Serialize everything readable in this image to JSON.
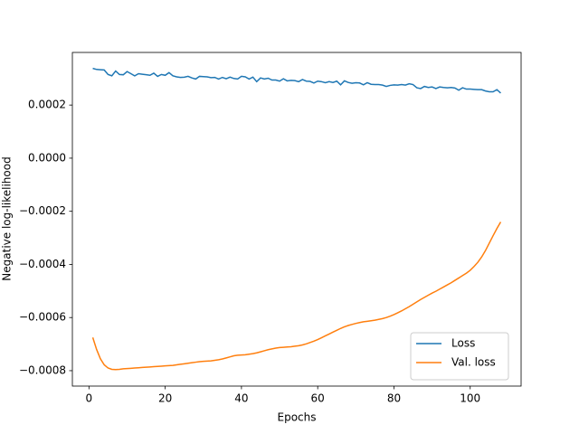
{
  "chart_data": {
    "type": "line",
    "xlabel": "Epochs",
    "ylabel": "Negative log-likelihood",
    "x": [
      1,
      2,
      3,
      4,
      5,
      6,
      7,
      8,
      9,
      10,
      11,
      12,
      13,
      14,
      15,
      16,
      17,
      18,
      19,
      20,
      21,
      22,
      23,
      24,
      25,
      26,
      27,
      28,
      29,
      30,
      31,
      32,
      33,
      34,
      35,
      36,
      37,
      38,
      39,
      40,
      41,
      42,
      43,
      44,
      45,
      46,
      47,
      48,
      49,
      50,
      51,
      52,
      53,
      54,
      55,
      56,
      57,
      58,
      59,
      60,
      61,
      62,
      63,
      64,
      65,
      66,
      67,
      68,
      69,
      70,
      71,
      72,
      73,
      74,
      75,
      76,
      77,
      78,
      79,
      80,
      81,
      82,
      83,
      84,
      85,
      86,
      87,
      88,
      89,
      90,
      91,
      92,
      93,
      94,
      95,
      96,
      97,
      98,
      99,
      100,
      101,
      102,
      103,
      104,
      105,
      106,
      107,
      108
    ],
    "series": [
      {
        "name": "Loss",
        "color": "#1f77b4",
        "values": [
          0.000338,
          0.000334,
          0.000333,
          0.000332,
          0.000315,
          0.00031,
          0.000328,
          0.000315,
          0.000314,
          0.000326,
          0.000318,
          0.00031,
          0.000318,
          0.000316,
          0.000314,
          0.000312,
          0.00032,
          0.000308,
          0.000315,
          0.000312,
          0.000322,
          0.00031,
          0.000306,
          0.000304,
          0.000305,
          0.000308,
          0.000302,
          0.000298,
          0.000308,
          0.000307,
          0.000306,
          0.000303,
          0.000304,
          0.000298,
          0.000304,
          0.000299,
          0.000305,
          0.0003,
          0.000298,
          0.000308,
          0.000306,
          0.000298,
          0.000305,
          0.000288,
          0.000302,
          0.000298,
          0.000301,
          0.000294,
          0.000294,
          0.00029,
          0.000299,
          0.000291,
          0.000293,
          0.000292,
          0.000288,
          0.000296,
          0.00029,
          0.000289,
          0.000283,
          0.00029,
          0.000288,
          0.000284,
          0.000288,
          0.000285,
          0.00029,
          0.000276,
          0.000291,
          0.000285,
          0.000282,
          0.000284,
          0.000283,
          0.000276,
          0.000284,
          0.000278,
          0.000277,
          0.000277,
          0.000275,
          0.00027,
          0.000274,
          0.000276,
          0.000275,
          0.000277,
          0.000275,
          0.00028,
          0.000277,
          0.000265,
          0.000262,
          0.00027,
          0.000266,
          0.000268,
          0.000262,
          0.000268,
          0.000266,
          0.000265,
          0.000266,
          0.000264,
          0.000256,
          0.000265,
          0.00026,
          0.00026,
          0.000259,
          0.000258,
          0.000258,
          0.000253,
          0.00025,
          0.00025,
          0.000258,
          0.000245
        ]
      },
      {
        "name": "Val. loss",
        "color": "#ff7f0e",
        "values": [
          -0.000675,
          -0.00072,
          -0.000755,
          -0.000778,
          -0.00079,
          -0.000795,
          -0.000796,
          -0.000795,
          -0.000793,
          -0.000792,
          -0.000791,
          -0.00079,
          -0.000789,
          -0.000788,
          -0.000787,
          -0.000786,
          -0.000785,
          -0.000784,
          -0.000783,
          -0.000782,
          -0.000781,
          -0.00078,
          -0.000778,
          -0.000776,
          -0.000774,
          -0.000772,
          -0.00077,
          -0.000768,
          -0.000766,
          -0.000765,
          -0.000764,
          -0.000763,
          -0.000761,
          -0.000759,
          -0.000756,
          -0.000752,
          -0.000748,
          -0.000744,
          -0.000742,
          -0.000741,
          -0.00074,
          -0.000738,
          -0.000736,
          -0.000733,
          -0.000729,
          -0.000725,
          -0.000721,
          -0.000718,
          -0.000715,
          -0.000713,
          -0.000712,
          -0.000711,
          -0.00071,
          -0.000708,
          -0.000706,
          -0.000703,
          -0.000699,
          -0.000694,
          -0.000689,
          -0.000683,
          -0.000676,
          -0.000669,
          -0.000662,
          -0.000655,
          -0.000648,
          -0.000641,
          -0.000635,
          -0.00063,
          -0.000626,
          -0.000622,
          -0.000619,
          -0.000616,
          -0.000614,
          -0.000612,
          -0.00061,
          -0.000607,
          -0.000604,
          -0.0006,
          -0.000595,
          -0.000589,
          -0.000582,
          -0.000575,
          -0.000567,
          -0.000559,
          -0.00055,
          -0.000541,
          -0.000532,
          -0.000524,
          -0.000516,
          -0.000508,
          -0.000501,
          -0.000493,
          -0.000485,
          -0.000477,
          -0.000469,
          -0.00046,
          -0.000451,
          -0.000442,
          -0.000433,
          -0.000422,
          -0.000408,
          -0.000392,
          -0.000372,
          -0.000348,
          -0.00032,
          -0.000292,
          -0.000265,
          -0.00024
        ]
      }
    ],
    "xlim": [
      -4.35,
      113.35
    ],
    "xticks": [
      0,
      20,
      40,
      60,
      80,
      100
    ],
    "ylim": [
      -0.000858,
      0.000398
    ],
    "yticks": [
      {
        "value": -0.0008,
        "label": "−0.0008"
      },
      {
        "value": -0.0006,
        "label": "−0.0006"
      },
      {
        "value": -0.0004,
        "label": "−0.0004"
      },
      {
        "value": -0.0002,
        "label": "−0.0002"
      },
      {
        "value": 0,
        "label": "0.0000"
      },
      {
        "value": 0.0002,
        "label": "0.0002"
      }
    ],
    "legend": "lower right"
  }
}
